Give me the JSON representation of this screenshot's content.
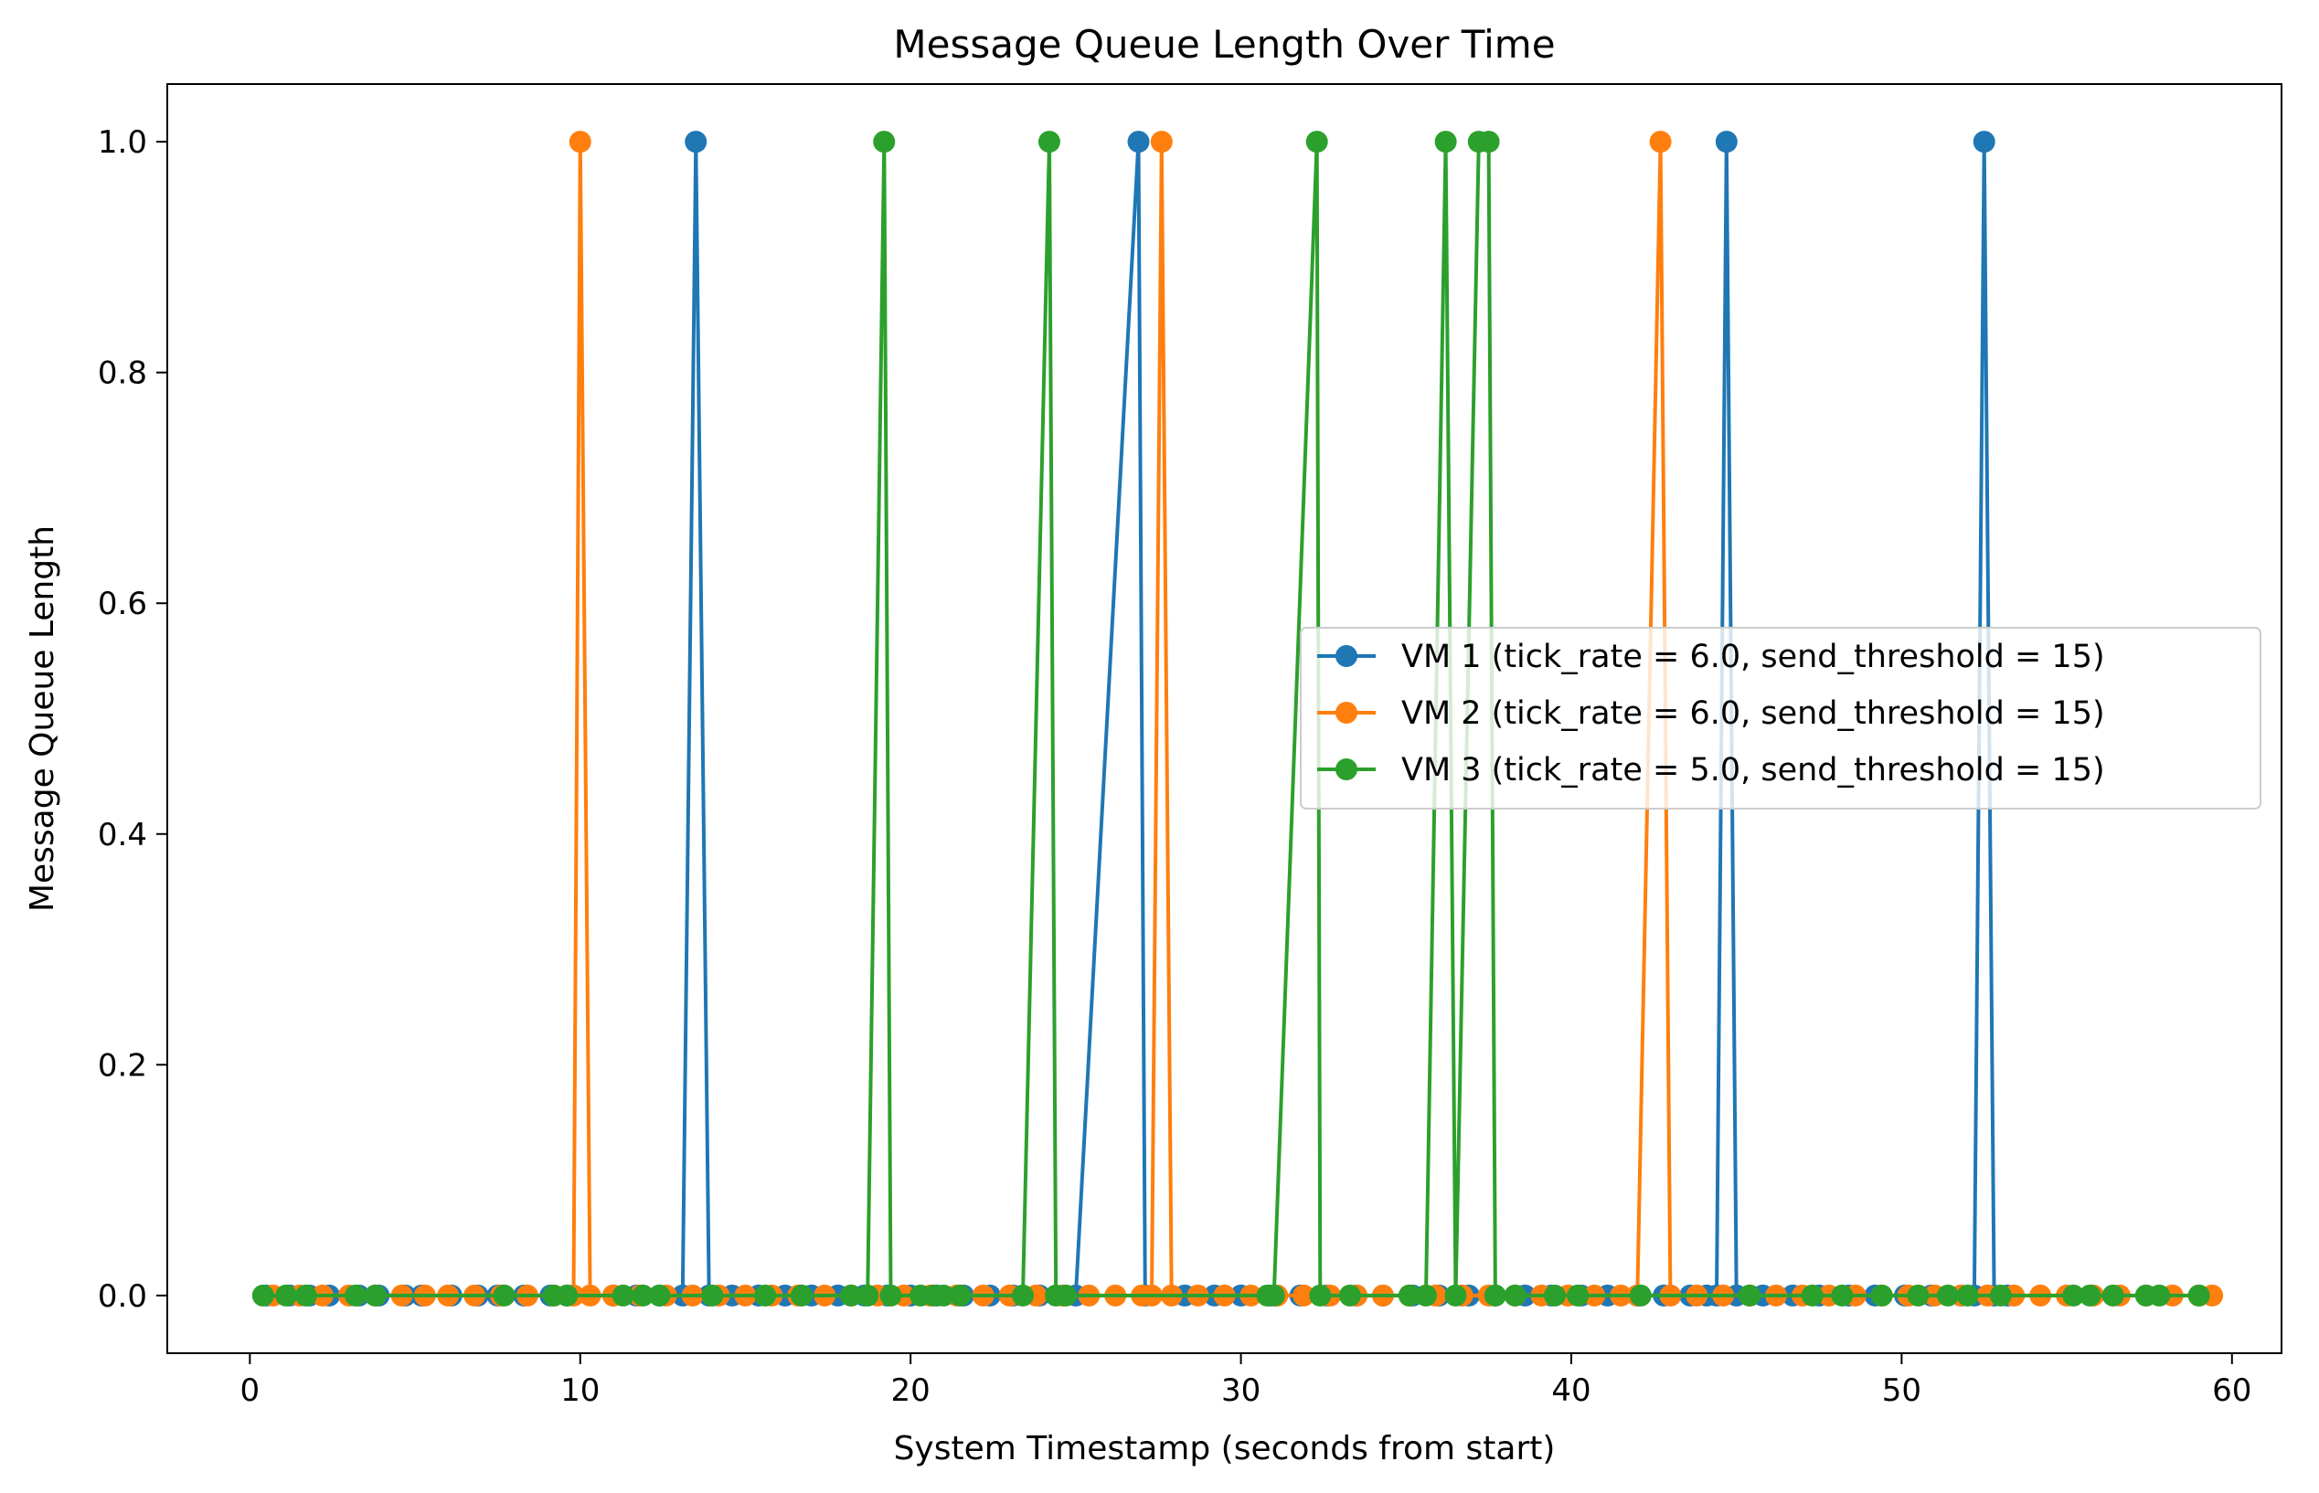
{
  "chart_data": {
    "type": "line",
    "title": "Message Queue Length Over Time",
    "xlabel": "System Timestamp (seconds from start)",
    "ylabel": "Message Queue Length",
    "xlim": [
      -2.5,
      61.5
    ],
    "ylim": [
      -0.05,
      1.05
    ],
    "xticks": [
      0,
      10,
      20,
      30,
      40,
      50,
      60
    ],
    "yticks": [
      0.0,
      0.2,
      0.4,
      0.6,
      0.8,
      1.0
    ],
    "xtick_labels": [
      "0",
      "10",
      "20",
      "30",
      "40",
      "50",
      "60"
    ],
    "ytick_labels": [
      "0.0",
      "0.2",
      "0.4",
      "0.6",
      "0.8",
      "1.0"
    ],
    "grid": false,
    "legend_position": "center-right",
    "series": [
      {
        "name": "VM 1 (tick_rate = 6.0, send_threshold = 15)",
        "color": "#1f77b4",
        "x": [
          0.5,
          1.2,
          1.8,
          2.4,
          3.3,
          3.9,
          4.7,
          5.2,
          6.1,
          6.9,
          7.5,
          8.3,
          9.1,
          9.6,
          11.0,
          11.7,
          12.4,
          13.1,
          13.5,
          13.9,
          14.6,
          15.4,
          16.2,
          17.0,
          17.8,
          18.6,
          19.3,
          20.0,
          20.8,
          21.6,
          22.4,
          23.1,
          23.9,
          24.6,
          25.0,
          26.9,
          27.1,
          28.3,
          29.2,
          30.0,
          30.9,
          31.8,
          32.6,
          33.5,
          34.3,
          35.2,
          36.0,
          36.9,
          37.7,
          38.6,
          39.4,
          40.3,
          41.1,
          42.0,
          42.8,
          43.6,
          44.1,
          44.4,
          44.7,
          45.0,
          45.8,
          46.7,
          47.5,
          48.4,
          49.2,
          50.1,
          50.9,
          51.8,
          52.2,
          52.5,
          52.8,
          53.2
        ],
        "y": [
          0,
          0,
          0,
          0,
          0,
          0,
          0,
          0,
          0,
          0,
          0,
          0,
          0,
          0,
          0,
          0,
          0,
          0,
          1,
          0,
          0,
          0,
          0,
          0,
          0,
          0,
          0,
          0,
          0,
          0,
          0,
          0,
          0,
          0,
          0,
          1,
          0,
          0,
          0,
          0,
          0,
          0,
          0,
          0,
          0,
          0,
          0,
          0,
          0,
          0,
          0,
          0,
          0,
          0,
          0,
          0,
          0,
          0,
          1,
          0,
          0,
          0,
          0,
          0,
          0,
          0,
          0,
          0,
          0,
          1,
          0,
          0
        ]
      },
      {
        "name": "VM 2 (tick_rate = 6.0, send_threshold = 15)",
        "color": "#ff7f0e",
        "x": [
          0.7,
          1.5,
          2.2,
          3.0,
          3.8,
          4.6,
          5.3,
          6.0,
          6.8,
          7.6,
          8.4,
          9.2,
          9.8,
          10.0,
          10.3,
          11.0,
          11.8,
          12.6,
          13.4,
          14.2,
          15.0,
          15.8,
          16.6,
          17.4,
          18.2,
          19.0,
          19.8,
          20.6,
          21.4,
          22.2,
          23.0,
          23.8,
          24.6,
          25.4,
          26.2,
          27.0,
          27.3,
          27.6,
          27.9,
          28.7,
          29.5,
          30.3,
          31.1,
          31.9,
          32.7,
          33.5,
          34.3,
          35.1,
          35.9,
          36.7,
          37.5,
          38.3,
          39.1,
          39.9,
          40.7,
          41.5,
          42.0,
          42.7,
          43.0,
          43.8,
          44.6,
          45.4,
          46.2,
          47.0,
          47.8,
          48.6,
          49.4,
          50.2,
          51.0,
          51.8,
          52.6,
          53.4,
          54.2,
          55.0,
          55.8,
          56.6,
          57.4,
          58.2,
          59.0,
          59.4
        ],
        "y": [
          0,
          0,
          0,
          0,
          0,
          0,
          0,
          0,
          0,
          0,
          0,
          0,
          0,
          1,
          0,
          0,
          0,
          0,
          0,
          0,
          0,
          0,
          0,
          0,
          0,
          0,
          0,
          0,
          0,
          0,
          0,
          0,
          0,
          0,
          0,
          0,
          0,
          1,
          0,
          0,
          0,
          0,
          0,
          0,
          0,
          0,
          0,
          0,
          0,
          0,
          0,
          0,
          0,
          0,
          0,
          0,
          0,
          1,
          0,
          0,
          0,
          0,
          0,
          0,
          0,
          0,
          0,
          0,
          0,
          0,
          0,
          0,
          0,
          0,
          0,
          0,
          0,
          0,
          0,
          0
        ]
      },
      {
        "name": "VM 3 (tick_rate = 5.0, send_threshold = 15)",
        "color": "#2ca02c",
        "x": [
          0.4,
          1.1,
          1.7,
          3.2,
          3.8,
          7.7,
          9.2,
          9.6,
          11.3,
          11.9,
          12.4,
          14.0,
          15.6,
          16.7,
          18.2,
          18.7,
          19.2,
          19.4,
          20.3,
          20.7,
          21.0,
          21.5,
          23.4,
          24.2,
          24.4,
          24.7,
          30.8,
          31.0,
          32.3,
          32.4,
          33.3,
          35.1,
          35.6,
          36.2,
          36.5,
          37.2,
          37.5,
          37.7,
          38.3,
          39.5,
          40.2,
          42.1,
          45.4,
          47.3,
          48.2,
          49.4,
          50.5,
          51.4,
          52.0,
          53.0,
          55.2,
          55.7,
          56.4,
          57.4,
          57.8,
          59.0
        ],
        "y": [
          0,
          0,
          0,
          0,
          0,
          0,
          0,
          0,
          0,
          0,
          0,
          0,
          0,
          0,
          0,
          0,
          1,
          0,
          0,
          0,
          0,
          0,
          0,
          1,
          0,
          0,
          0,
          0,
          1,
          0,
          0,
          0,
          0,
          1,
          0,
          1,
          1,
          0,
          0,
          0,
          0,
          0,
          0,
          0,
          0,
          0,
          0,
          0,
          0,
          0,
          0,
          0,
          0,
          0,
          0,
          0
        ]
      }
    ]
  }
}
